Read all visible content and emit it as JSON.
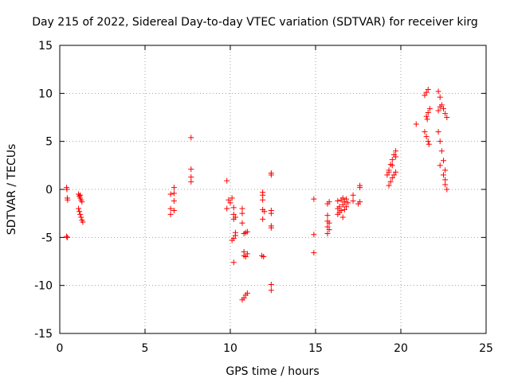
{
  "chart_data": {
    "type": "scatter",
    "title": "Day 215 of 2022, Sidereal Day-to-day VTEC variation (SDTVAR) for receiver kirg",
    "xlabel": "GPS time / hours",
    "ylabel": "SDTVAR / TECUs",
    "xlim": [
      0,
      25
    ],
    "ylim": [
      -15,
      15
    ],
    "xticks": [
      "0",
      "5",
      "10",
      "15",
      "20",
      "25"
    ],
    "yticks": [
      "15",
      "10",
      "5",
      "0",
      "-5",
      "-10",
      "-15"
    ],
    "grid": true,
    "marker": "plus",
    "color": "#ff0000",
    "series": [
      {
        "name": "SDTVAR",
        "points": [
          [
            0.4,
            0.2
          ],
          [
            0.42,
            0.0
          ],
          [
            0.44,
            -0.9
          ],
          [
            0.46,
            -1.1
          ],
          [
            0.4,
            -4.9
          ],
          [
            0.45,
            -5.0
          ],
          [
            1.1,
            -0.5
          ],
          [
            1.15,
            -0.7
          ],
          [
            1.2,
            -0.9
          ],
          [
            1.25,
            -1.1
          ],
          [
            1.3,
            -1.3
          ],
          [
            1.2,
            -0.6
          ],
          [
            1.1,
            -2.0
          ],
          [
            1.15,
            -2.3
          ],
          [
            1.2,
            -2.6
          ],
          [
            1.25,
            -2.9
          ],
          [
            1.3,
            -3.2
          ],
          [
            1.35,
            -3.4
          ],
          [
            6.5,
            -0.5
          ],
          [
            6.5,
            -2.0
          ],
          [
            6.5,
            -2.6
          ],
          [
            6.7,
            0.2
          ],
          [
            6.7,
            -0.4
          ],
          [
            6.7,
            -1.2
          ],
          [
            6.7,
            -2.2
          ],
          [
            7.7,
            5.4
          ],
          [
            7.7,
            2.1
          ],
          [
            7.7,
            1.3
          ],
          [
            7.7,
            0.8
          ],
          [
            9.8,
            0.9
          ],
          [
            9.8,
            -2.0
          ],
          [
            9.9,
            -1.1
          ],
          [
            10.0,
            -1.4
          ],
          [
            10.1,
            -0.9
          ],
          [
            10.2,
            -1.9
          ],
          [
            10.2,
            -2.6
          ],
          [
            10.3,
            -2.9
          ],
          [
            10.2,
            -3.1
          ],
          [
            10.3,
            -4.5
          ],
          [
            10.3,
            -4.8
          ],
          [
            10.1,
            -5.3
          ],
          [
            10.2,
            -5.1
          ],
          [
            10.2,
            -7.6
          ],
          [
            10.7,
            -2.0
          ],
          [
            10.7,
            -2.5
          ],
          [
            10.7,
            -3.5
          ],
          [
            10.8,
            -4.6
          ],
          [
            10.9,
            -4.5
          ],
          [
            11.0,
            -4.4
          ],
          [
            10.8,
            -6.5
          ],
          [
            10.8,
            -6.9
          ],
          [
            10.9,
            -7.0
          ],
          [
            11.0,
            -6.7
          ],
          [
            10.7,
            -11.5
          ],
          [
            10.8,
            -11.3
          ],
          [
            10.9,
            -11.0
          ],
          [
            11.0,
            -10.8
          ],
          [
            11.9,
            -0.3
          ],
          [
            11.9,
            -0.6
          ],
          [
            11.9,
            -1.1
          ],
          [
            11.9,
            -2.1
          ],
          [
            12.0,
            -2.3
          ],
          [
            11.9,
            -3.1
          ],
          [
            11.85,
            -6.9
          ],
          [
            11.95,
            -7.0
          ],
          [
            12.4,
            1.7
          ],
          [
            12.4,
            1.5
          ],
          [
            12.4,
            -2.2
          ],
          [
            12.4,
            -2.5
          ],
          [
            12.4,
            -3.8
          ],
          [
            12.4,
            -4.0
          ],
          [
            12.4,
            -9.9
          ],
          [
            12.4,
            -10.5
          ],
          [
            14.9,
            -1.0
          ],
          [
            14.9,
            -4.7
          ],
          [
            14.9,
            -6.6
          ],
          [
            15.7,
            -1.5
          ],
          [
            15.7,
            -2.7
          ],
          [
            15.7,
            -3.3
          ],
          [
            15.7,
            -3.9
          ],
          [
            15.8,
            -3.5
          ],
          [
            15.8,
            -4.2
          ],
          [
            15.7,
            -4.6
          ],
          [
            15.8,
            -1.3
          ],
          [
            16.3,
            -1.2
          ],
          [
            16.3,
            -2.0
          ],
          [
            16.3,
            -2.6
          ],
          [
            16.4,
            -1.8
          ],
          [
            16.4,
            -2.4
          ],
          [
            16.5,
            -1.1
          ],
          [
            16.5,
            -2.2
          ],
          [
            16.6,
            -0.9
          ],
          [
            16.6,
            -1.6
          ],
          [
            16.6,
            -2.9
          ],
          [
            16.7,
            -1.3
          ],
          [
            16.7,
            -2.1
          ],
          [
            16.8,
            -1.0
          ],
          [
            16.8,
            -1.8
          ],
          [
            16.9,
            -1.4
          ],
          [
            17.2,
            -0.6
          ],
          [
            17.2,
            -1.2
          ],
          [
            17.6,
            0.4
          ],
          [
            17.6,
            0.2
          ],
          [
            17.5,
            -1.5
          ],
          [
            17.6,
            -1.3
          ],
          [
            19.2,
            1.5
          ],
          [
            19.3,
            2.0
          ],
          [
            19.4,
            2.6
          ],
          [
            19.5,
            3.1
          ],
          [
            19.6,
            3.6
          ],
          [
            19.7,
            4.0
          ],
          [
            19.3,
            1.8
          ],
          [
            19.5,
            2.5
          ],
          [
            19.7,
            3.4
          ],
          [
            19.3,
            0.4
          ],
          [
            19.4,
            0.8
          ],
          [
            19.5,
            1.2
          ],
          [
            19.6,
            1.5
          ],
          [
            19.7,
            1.8
          ],
          [
            20.9,
            6.8
          ],
          [
            21.4,
            9.8
          ],
          [
            21.5,
            10.1
          ],
          [
            21.6,
            10.4
          ],
          [
            21.5,
            7.6
          ],
          [
            21.6,
            8.0
          ],
          [
            21.7,
            8.4
          ],
          [
            21.55,
            7.3
          ],
          [
            21.4,
            6.0
          ],
          [
            21.5,
            5.5
          ],
          [
            21.6,
            5.0
          ],
          [
            21.65,
            4.7
          ],
          [
            22.2,
            10.2
          ],
          [
            22.3,
            9.6
          ],
          [
            22.4,
            8.8
          ],
          [
            22.2,
            8.2
          ],
          [
            22.3,
            8.6
          ],
          [
            22.5,
            8.4
          ],
          [
            22.6,
            7.9
          ],
          [
            22.7,
            7.5
          ],
          [
            22.2,
            6.0
          ],
          [
            22.3,
            5.0
          ],
          [
            22.4,
            4.0
          ],
          [
            22.5,
            3.0
          ],
          [
            22.6,
            2.0
          ],
          [
            22.6,
            1.0
          ],
          [
            22.7,
            0.0
          ],
          [
            22.3,
            2.5
          ],
          [
            22.5,
            1.5
          ],
          [
            22.6,
            0.5
          ]
        ]
      }
    ]
  }
}
